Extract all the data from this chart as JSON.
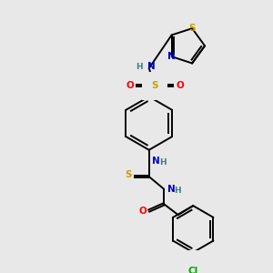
{
  "bg_color": "#e8e8e8",
  "figsize": [
    3.0,
    3.0
  ],
  "dpi": 100,
  "colors": {
    "C": "#000000",
    "N": "#0000cc",
    "O": "#ff0000",
    "S": "#c8a000",
    "Cl": "#00aa00",
    "H": "#408080",
    "bond": "#000000"
  },
  "lw": 1.4,
  "fs": 7.0
}
